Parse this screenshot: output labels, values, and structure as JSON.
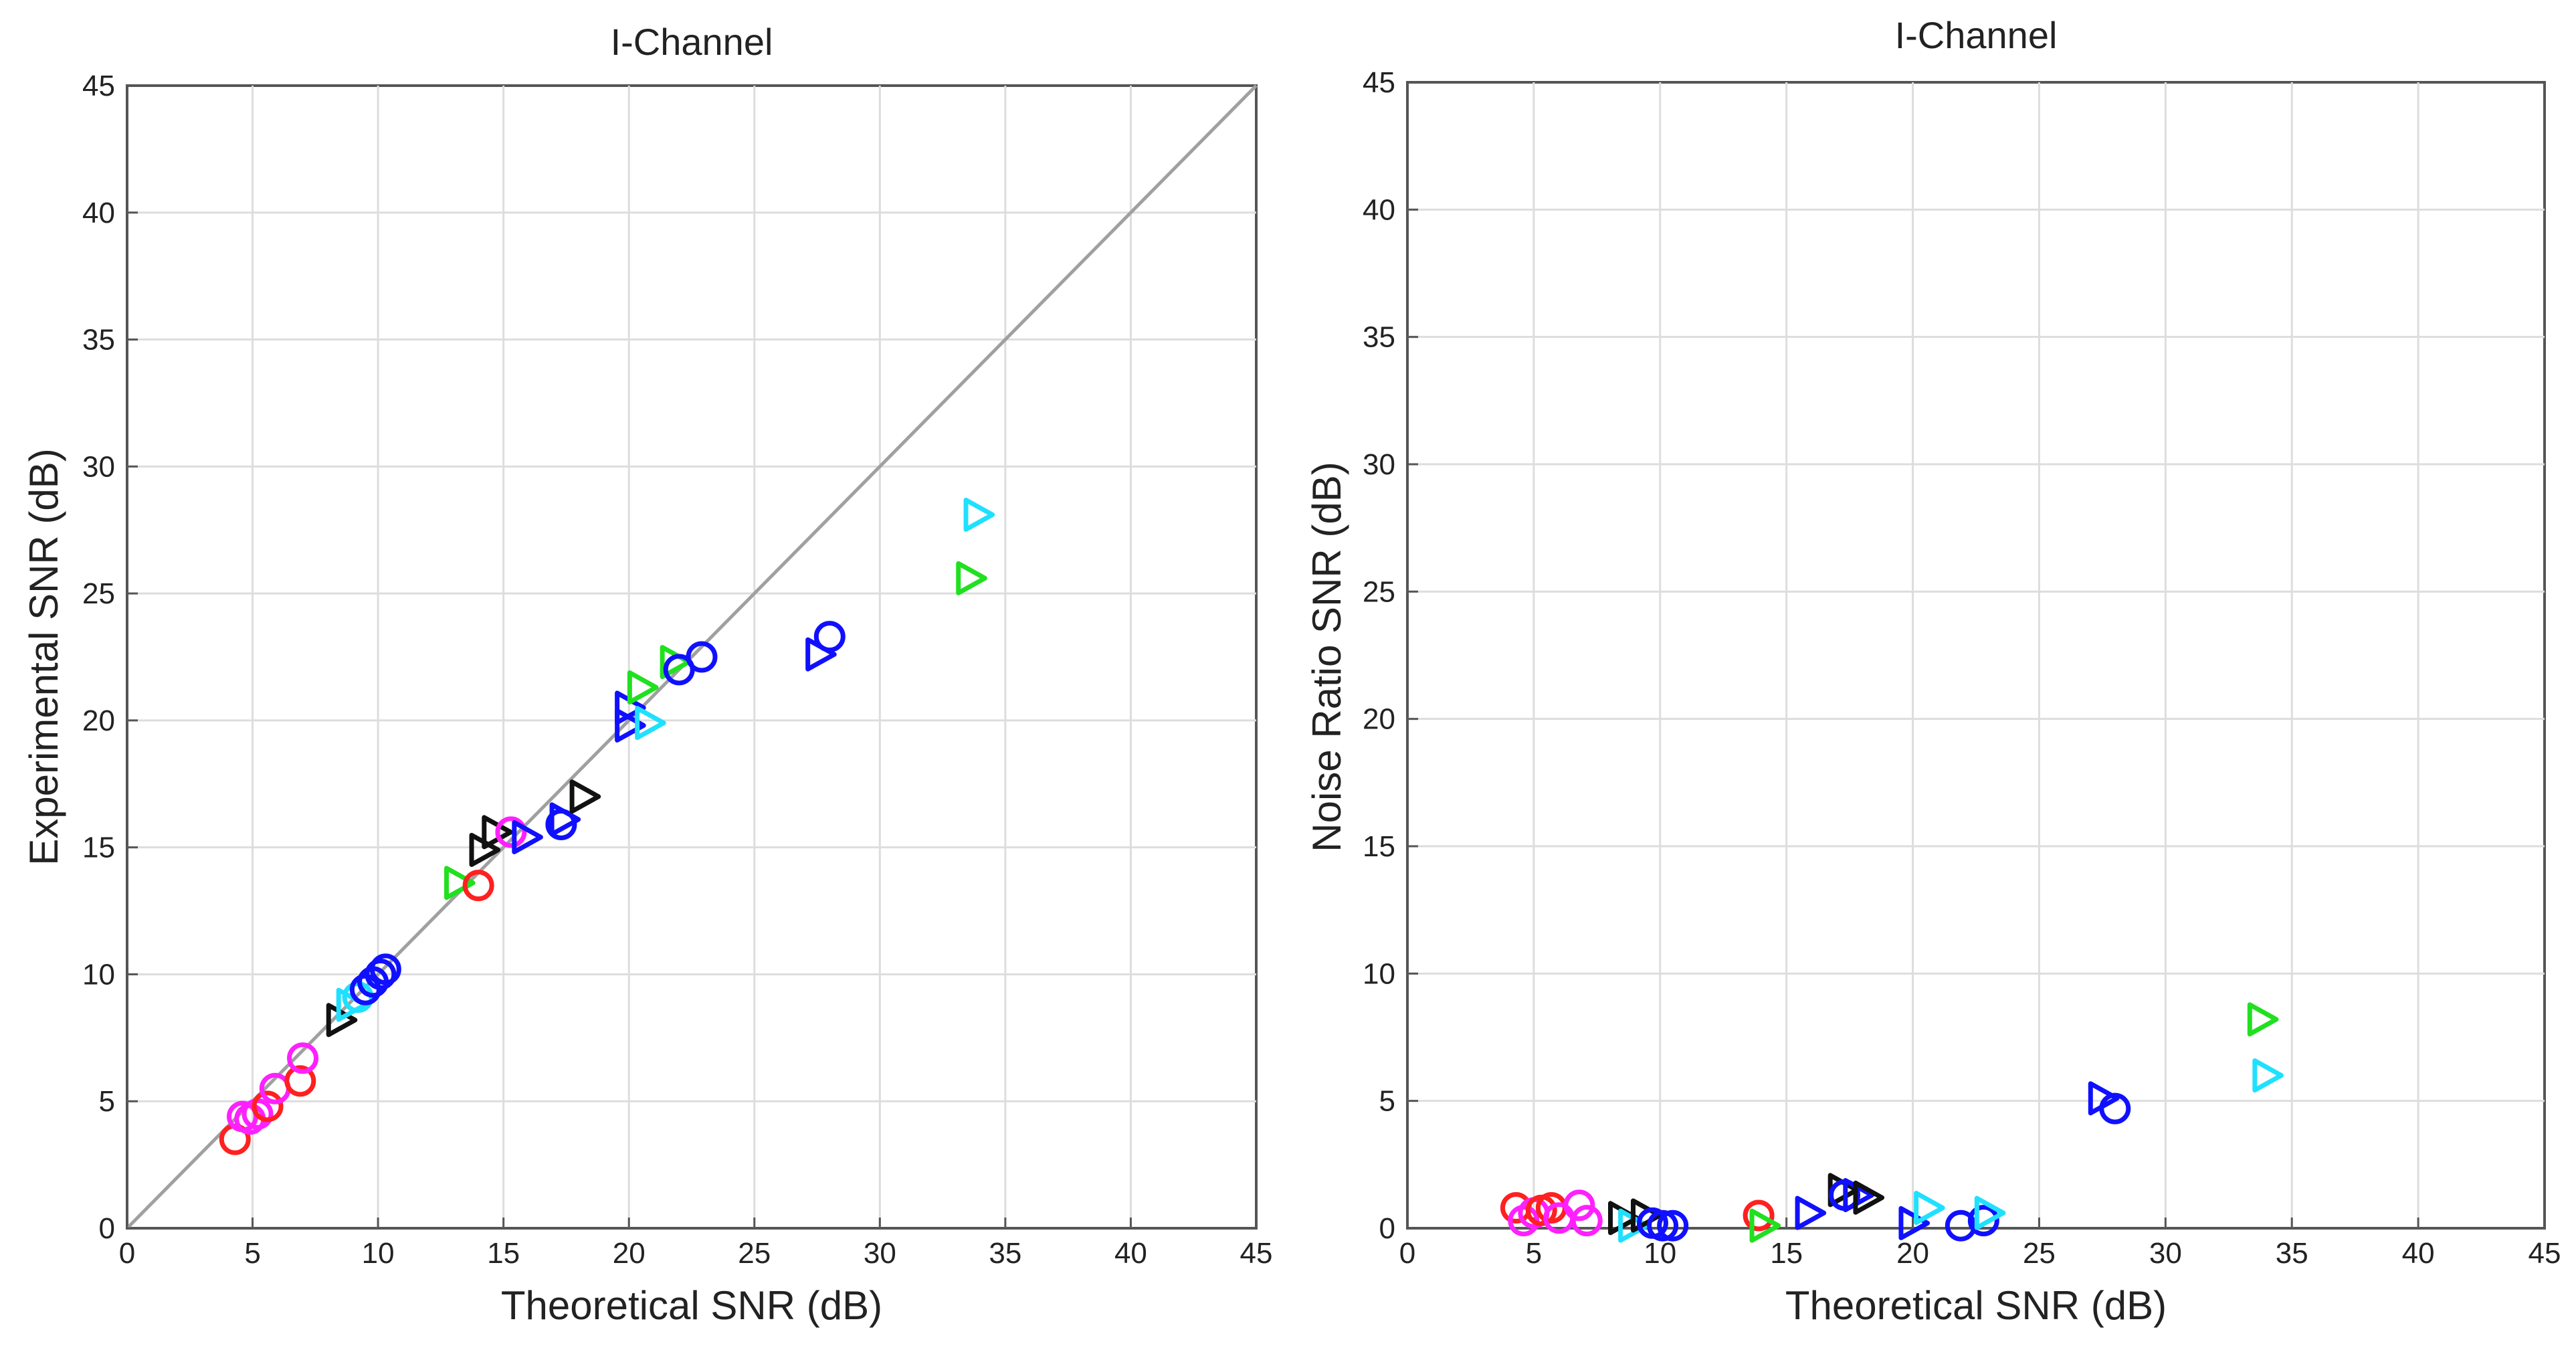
{
  "chart_data": [
    {
      "type": "scatter",
      "title": "I-Channel",
      "xlabel": "Theoretical SNR (dB)",
      "ylabel": "Experimental SNR (dB)",
      "xlim": [
        0,
        45
      ],
      "ylim": [
        0,
        45
      ],
      "xticks": [
        0,
        5,
        10,
        15,
        20,
        25,
        30,
        35,
        40,
        45
      ],
      "yticks": [
        0,
        5,
        10,
        15,
        20,
        25,
        30,
        35,
        40,
        45
      ],
      "grid": true,
      "reference_line": {
        "x": [
          0,
          45
        ],
        "y": [
          0,
          45
        ],
        "color": "#a0a0a0"
      },
      "points": [
        {
          "x": 4.3,
          "y": 3.5,
          "marker": "o",
          "color": "#ff2020"
        },
        {
          "x": 4.6,
          "y": 4.4,
          "marker": "o",
          "color": "#ff20ff"
        },
        {
          "x": 4.9,
          "y": 4.3,
          "marker": "o",
          "color": "#ff20ff"
        },
        {
          "x": 5.2,
          "y": 4.5,
          "marker": "o",
          "color": "#ff20ff"
        },
        {
          "x": 5.6,
          "y": 4.8,
          "marker": "o",
          "color": "#ff2020"
        },
        {
          "x": 5.9,
          "y": 5.5,
          "marker": "o",
          "color": "#ff20ff"
        },
        {
          "x": 6.9,
          "y": 5.8,
          "marker": "o",
          "color": "#ff2020"
        },
        {
          "x": 7.0,
          "y": 6.7,
          "marker": "o",
          "color": "#ff20ff"
        },
        {
          "x": 8.5,
          "y": 8.2,
          "marker": "tri-right",
          "color": "#111111"
        },
        {
          "x": 8.9,
          "y": 8.8,
          "marker": "tri-right",
          "color": "#20e0ff"
        },
        {
          "x": 9.2,
          "y": 9.1,
          "marker": "o",
          "color": "#20e0ff"
        },
        {
          "x": 9.5,
          "y": 9.4,
          "marker": "o",
          "color": "#1010ff"
        },
        {
          "x": 9.8,
          "y": 9.7,
          "marker": "o",
          "color": "#1010ff"
        },
        {
          "x": 10.1,
          "y": 10.0,
          "marker": "o",
          "color": "#1010ff"
        },
        {
          "x": 10.3,
          "y": 10.2,
          "marker": "o",
          "color": "#1010ff"
        },
        {
          "x": 13.2,
          "y": 13.6,
          "marker": "tri-right",
          "color": "#20e020"
        },
        {
          "x": 14.0,
          "y": 13.5,
          "marker": "o",
          "color": "#ff2020"
        },
        {
          "x": 14.2,
          "y": 14.9,
          "marker": "tri-right",
          "color": "#111111"
        },
        {
          "x": 14.7,
          "y": 15.6,
          "marker": "tri-right",
          "color": "#111111"
        },
        {
          "x": 15.3,
          "y": 15.6,
          "marker": "o",
          "color": "#ff20ff"
        },
        {
          "x": 15.9,
          "y": 15.4,
          "marker": "tri-right",
          "color": "#1010ff"
        },
        {
          "x": 17.3,
          "y": 15.9,
          "marker": "o",
          "color": "#1010ff"
        },
        {
          "x": 17.4,
          "y": 16.1,
          "marker": "tri-right",
          "color": "#1010ff"
        },
        {
          "x": 18.2,
          "y": 17.0,
          "marker": "tri-right",
          "color": "#111111"
        },
        {
          "x": 20.0,
          "y": 19.8,
          "marker": "tri-right",
          "color": "#1010ff"
        },
        {
          "x": 20.0,
          "y": 20.5,
          "marker": "tri-right",
          "color": "#1010ff"
        },
        {
          "x": 20.8,
          "y": 19.9,
          "marker": "tri-right",
          "color": "#20e0ff"
        },
        {
          "x": 20.5,
          "y": 21.3,
          "marker": "tri-right",
          "color": "#20e020"
        },
        {
          "x": 21.8,
          "y": 22.3,
          "marker": "tri-right",
          "color": "#20e020"
        },
        {
          "x": 22.0,
          "y": 22.0,
          "marker": "o",
          "color": "#1010ff"
        },
        {
          "x": 22.9,
          "y": 22.5,
          "marker": "o",
          "color": "#1010ff"
        },
        {
          "x": 27.6,
          "y": 22.6,
          "marker": "tri-right",
          "color": "#1010ff"
        },
        {
          "x": 28.0,
          "y": 23.3,
          "marker": "o",
          "color": "#1010ff"
        },
        {
          "x": 33.6,
          "y": 25.6,
          "marker": "tri-right",
          "color": "#20e020"
        },
        {
          "x": 33.9,
          "y": 28.1,
          "marker": "tri-right",
          "color": "#20e0ff"
        }
      ]
    },
    {
      "type": "scatter",
      "title": "I-Channel",
      "xlabel": "Theoretical SNR (dB)",
      "ylabel": "Noise Ratio SNR (dB)",
      "xlim": [
        0,
        45
      ],
      "ylim": [
        0,
        45
      ],
      "xticks": [
        0,
        5,
        10,
        15,
        20,
        25,
        30,
        35,
        40,
        45
      ],
      "yticks": [
        0,
        5,
        10,
        15,
        20,
        25,
        30,
        35,
        40,
        45
      ],
      "grid": true,
      "points": [
        {
          "x": 4.3,
          "y": 0.8,
          "marker": "o",
          "color": "#ff2020"
        },
        {
          "x": 4.6,
          "y": 0.3,
          "marker": "o",
          "color": "#ff20ff"
        },
        {
          "x": 5.0,
          "y": 0.6,
          "marker": "o",
          "color": "#ff20ff"
        },
        {
          "x": 5.3,
          "y": 0.7,
          "marker": "o",
          "color": "#ff2020"
        },
        {
          "x": 5.7,
          "y": 0.8,
          "marker": "o",
          "color": "#ff2020"
        },
        {
          "x": 6.0,
          "y": 0.4,
          "marker": "o",
          "color": "#ff20ff"
        },
        {
          "x": 6.8,
          "y": 0.9,
          "marker": "o",
          "color": "#ff20ff"
        },
        {
          "x": 7.1,
          "y": 0.3,
          "marker": "o",
          "color": "#ff20ff"
        },
        {
          "x": 8.5,
          "y": 0.4,
          "marker": "tri-right",
          "color": "#111111"
        },
        {
          "x": 8.9,
          "y": 0.1,
          "marker": "tri-right",
          "color": "#20e0ff"
        },
        {
          "x": 9.4,
          "y": 0.5,
          "marker": "tri-right",
          "color": "#111111"
        },
        {
          "x": 9.7,
          "y": 0.2,
          "marker": "o",
          "color": "#1010ff"
        },
        {
          "x": 10.1,
          "y": 0.1,
          "marker": "o",
          "color": "#1010ff"
        },
        {
          "x": 10.5,
          "y": 0.1,
          "marker": "o",
          "color": "#1010ff"
        },
        {
          "x": 13.9,
          "y": 0.5,
          "marker": "o",
          "color": "#ff2020"
        },
        {
          "x": 14.1,
          "y": 0.1,
          "marker": "tri-right",
          "color": "#20e020"
        },
        {
          "x": 15.9,
          "y": 0.6,
          "marker": "tri-right",
          "color": "#1010ff"
        },
        {
          "x": 17.2,
          "y": 1.5,
          "marker": "tri-right",
          "color": "#111111"
        },
        {
          "x": 17.3,
          "y": 1.3,
          "marker": "o",
          "color": "#1010ff"
        },
        {
          "x": 17.8,
          "y": 1.3,
          "marker": "tri-right",
          "color": "#1010ff"
        },
        {
          "x": 18.2,
          "y": 1.2,
          "marker": "tri-right",
          "color": "#111111"
        },
        {
          "x": 20.0,
          "y": 0.2,
          "marker": "tri-right",
          "color": "#1010ff"
        },
        {
          "x": 20.6,
          "y": 0.8,
          "marker": "tri-right",
          "color": "#20e0ff"
        },
        {
          "x": 21.9,
          "y": 0.1,
          "marker": "o",
          "color": "#1010ff"
        },
        {
          "x": 22.8,
          "y": 0.3,
          "marker": "o",
          "color": "#1010ff"
        },
        {
          "x": 23.0,
          "y": 0.6,
          "marker": "tri-right",
          "color": "#20e0ff"
        },
        {
          "x": 27.5,
          "y": 5.1,
          "marker": "tri-right",
          "color": "#1010ff"
        },
        {
          "x": 28.0,
          "y": 4.7,
          "marker": "o",
          "color": "#1010ff"
        },
        {
          "x": 33.8,
          "y": 8.2,
          "marker": "tri-right",
          "color": "#20e020"
        },
        {
          "x": 34.0,
          "y": 6.0,
          "marker": "tri-right",
          "color": "#20e0ff"
        }
      ]
    }
  ]
}
